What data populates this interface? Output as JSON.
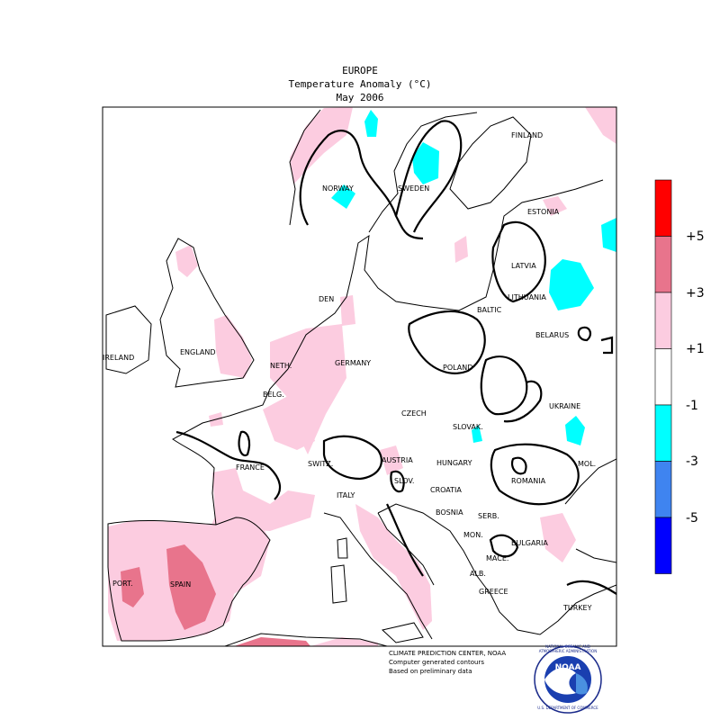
{
  "header": {
    "region": "EUROPE",
    "variable": "Temperature Anomaly (°C)",
    "period": "May 2006"
  },
  "countries": {
    "finland": "FINLAND",
    "norway": "NORWAY",
    "sweden": "SWEDEN",
    "estonia": "ESTONIA",
    "latvia": "LATVIA",
    "lithuania": "LITHUANIA",
    "denmark": "DEN",
    "baltic": "BALTIC",
    "belarus": "BELARUS",
    "ireland": "IRELAND",
    "england": "ENGLAND",
    "netherlands": "NETH.",
    "germany": "GERMANY",
    "poland": "POLAND",
    "belgium": "BELG.",
    "czech": "CZECH",
    "slovakia": "SLOVAK.",
    "ukraine": "UKRAINE",
    "france": "FRANCE",
    "switzerland": "SWITZ.",
    "austria": "AUSTRIA",
    "hungary": "HUNGARY",
    "moldova": "MOL.",
    "slovenia": "SLOV.",
    "croatia": "CROATIA",
    "romania": "ROMANIA",
    "italy": "ITALY",
    "bosnia": "BOSNIA",
    "serbia": "SERB.",
    "montenegro": "MON.",
    "bulgaria": "BULGARIA",
    "macedonia": "MACE.",
    "albania": "ALB.",
    "greece": "GREECE",
    "turkey": "TURKEY",
    "portugal": "PORT.",
    "spain": "SPAIN"
  },
  "legend": {
    "colors": [
      "#ff0000",
      "#e8748c",
      "#fccce0",
      "#ffffff",
      "#00ffff",
      "#3f84f0",
      "#0000ff"
    ],
    "labels": [
      "+5",
      "+3",
      "+1",
      "-1",
      "-3",
      "-5"
    ]
  },
  "footer": {
    "line1": "CLIMATE PREDICTION CENTER, NOAA",
    "line2": "Computer generated contours",
    "line3": "Based on preliminary data",
    "logo_text": "NOAA",
    "logo_ring_top": "NATIONAL OCEANIC AND ATMOSPHERIC ADMINISTRATION",
    "logo_ring_bottom": "U.S. DEPARTMENT OF COMMERCE"
  }
}
